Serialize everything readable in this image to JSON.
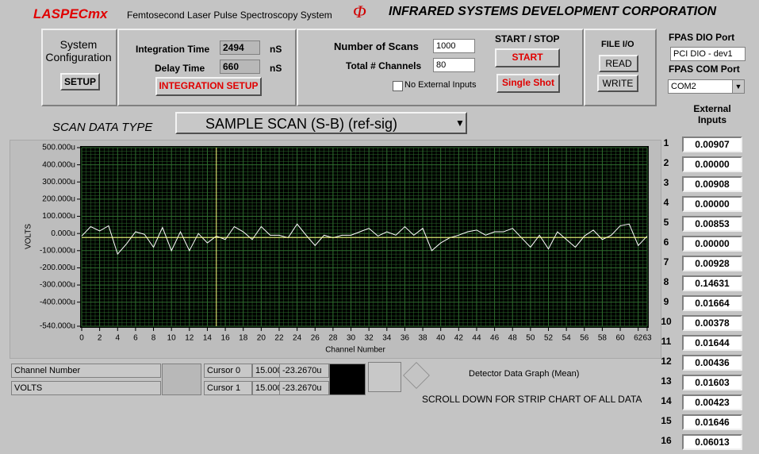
{
  "header": {
    "app_name": "LASPECmx",
    "app_subtitle": "Femtosecond Laser Pulse Spectroscopy System",
    "logo": "Φ",
    "company": "INFRARED SYSTEMS DEVELOPMENT CORPORATION"
  },
  "system_config": {
    "label": "System Configuration",
    "button": "SETUP"
  },
  "timing": {
    "integration_label": "Integration Time",
    "integration_value": "2494",
    "integration_unit": "nS",
    "delay_label": "Delay Time",
    "delay_value": "660",
    "delay_unit": "nS",
    "button": "INTEGRATION SETUP"
  },
  "scans": {
    "scans_label": "Number of Scans",
    "scans_value": "1000",
    "channels_label": "Total # Channels",
    "channels_value": "80",
    "checkbox_label": "No External Inputs"
  },
  "start_stop": {
    "label": "START / STOP",
    "start": "START",
    "single": "Single Shot"
  },
  "file_io": {
    "label": "FILE I/O",
    "read": "READ",
    "write": "WRITE"
  },
  "fpas": {
    "dio_label": "FPAS DIO Port",
    "dio_value": "PCI DIO - dev1",
    "com_label": "FPAS COM Port",
    "com_value": "COM2"
  },
  "scan_type": {
    "label": "SCAN DATA TYPE",
    "value": "SAMPLE SCAN (S-B) (ref-sig)"
  },
  "chart_data": {
    "type": "line",
    "x_label": "Channel Number",
    "y_label": "VOLTS",
    "color": "#ffffff",
    "background": "#000000",
    "grid": true,
    "grid_color": "#2e6b2e",
    "x": [
      0,
      1,
      2,
      3,
      4,
      5,
      6,
      7,
      8,
      9,
      10,
      11,
      12,
      13,
      14,
      15,
      16,
      17,
      18,
      19,
      20,
      21,
      22,
      23,
      24,
      25,
      26,
      27,
      28,
      29,
      30,
      31,
      32,
      33,
      34,
      35,
      36,
      37,
      38,
      39,
      40,
      41,
      42,
      43,
      44,
      45,
      46,
      47,
      48,
      49,
      50,
      51,
      52,
      53,
      54,
      55,
      56,
      57,
      58,
      59,
      60,
      61,
      62,
      63
    ],
    "values": [
      -15,
      40,
      15,
      45,
      -120,
      -60,
      10,
      -5,
      -80,
      35,
      -100,
      10,
      -100,
      0,
      -55,
      -15,
      -35,
      40,
      10,
      -35,
      40,
      -10,
      -10,
      -25,
      55,
      -10,
      -70,
      -10,
      -25,
      -10,
      -10,
      10,
      30,
      -15,
      10,
      -10,
      40,
      -10,
      30,
      -100,
      -55,
      -25,
      -10,
      10,
      20,
      -10,
      10,
      10,
      30,
      -25,
      -80,
      -10,
      -90,
      10,
      -35,
      -80,
      -15,
      20,
      -35,
      -10,
      45,
      55,
      -70,
      -15
    ],
    "xlim": [
      0,
      63
    ],
    "xticks": [
      0,
      2,
      4,
      6,
      8,
      10,
      12,
      14,
      16,
      18,
      20,
      22,
      24,
      26,
      28,
      30,
      32,
      34,
      36,
      38,
      40,
      42,
      44,
      46,
      48,
      50,
      52,
      54,
      56,
      58,
      60,
      62,
      63
    ],
    "ylim": [
      -540,
      500
    ],
    "yticks": [
      {
        "value": 500,
        "label": "500.000u"
      },
      {
        "value": 400,
        "label": "400.000u"
      },
      {
        "value": 300,
        "label": "300.000u"
      },
      {
        "value": 200,
        "label": "200.000u"
      },
      {
        "value": 100,
        "label": "100.000u"
      },
      {
        "value": 0,
        "label": "0.000u"
      },
      {
        "value": -100,
        "label": "-100.000u"
      },
      {
        "value": -200,
        "label": "-200.000u"
      },
      {
        "value": -300,
        "label": "-300.000u"
      },
      {
        "value": -400,
        "label": "-400.000u"
      },
      {
        "value": -540,
        "label": "-540.000u"
      }
    ]
  },
  "plot_legend": [
    "Channel Number",
    "VOLTS"
  ],
  "cursors": [
    {
      "name": "Cursor 0",
      "x": {
        "value": 15,
        "label": "15.000"
      },
      "y": {
        "value": -23.267,
        "label": "-23.2670u"
      }
    },
    {
      "name": "Cursor 1",
      "x": {
        "value": 15,
        "label": "15.000"
      },
      "y": {
        "value": -23.267,
        "label": "-23.2670u"
      }
    }
  ],
  "graph_caption": "Detector Data Graph (Mean)",
  "scroll_note": "SCROLL DOWN FOR STRIP CHART OF ALL DATA",
  "external_inputs": {
    "title": "External Inputs",
    "rows": [
      [
        "1",
        "0.00907"
      ],
      [
        "2",
        "0.00000"
      ],
      [
        "3",
        "0.00908"
      ],
      [
        "4",
        "0.00000"
      ],
      [
        "5",
        "0.00853"
      ],
      [
        "6",
        "0.00000"
      ],
      [
        "7",
        "0.00928"
      ],
      [
        "8",
        "0.14631"
      ],
      [
        "9",
        "0.01664"
      ],
      [
        "10",
        "0.00378"
      ],
      [
        "11",
        "0.01644"
      ],
      [
        "12",
        "0.00436"
      ],
      [
        "13",
        "0.01603"
      ],
      [
        "14",
        "0.00423"
      ],
      [
        "15",
        "0.01646"
      ],
      [
        "16",
        "0.06013"
      ]
    ]
  }
}
